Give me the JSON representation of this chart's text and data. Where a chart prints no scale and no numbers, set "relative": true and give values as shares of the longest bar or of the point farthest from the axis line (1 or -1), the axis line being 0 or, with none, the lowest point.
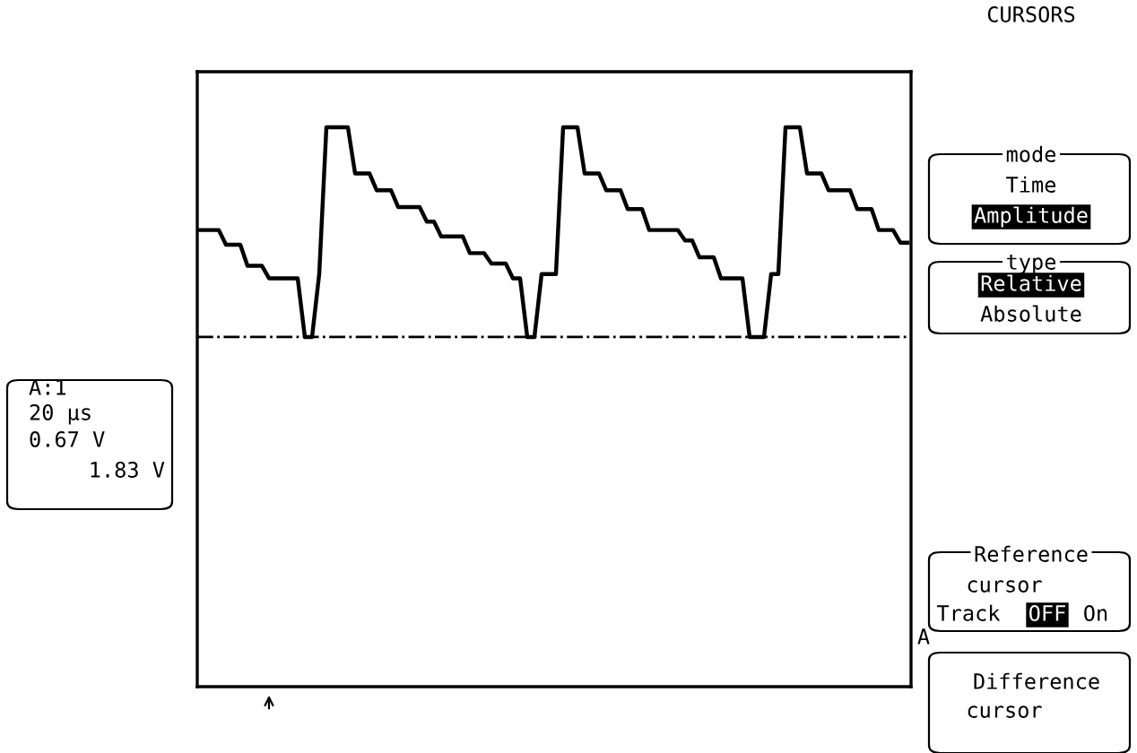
{
  "chart_data": {
    "type": "line",
    "relative": true,
    "categories": [
      null,
      null,
      null,
      null,
      null,
      null,
      null,
      null,
      null,
      null,
      null,
      null,
      null,
      null,
      null,
      null,
      null,
      null,
      null,
      null,
      null,
      null,
      null,
      null,
      null,
      null,
      null,
      null,
      null,
      null,
      null,
      null,
      null,
      null,
      null,
      null,
      null,
      null,
      null,
      null,
      null,
      null,
      null,
      null,
      null,
      null,
      null,
      null,
      null,
      null,
      null,
      null,
      null,
      null,
      null,
      null,
      null,
      null,
      null,
      null,
      null,
      null,
      null,
      null,
      null,
      null,
      null,
      null,
      null,
      null,
      null,
      null,
      null,
      null,
      null,
      null,
      null,
      null,
      null,
      null,
      null,
      null,
      null,
      null,
      null,
      null,
      null,
      null,
      null,
      null,
      null,
      null,
      null,
      null,
      null,
      null,
      null,
      null,
      null,
      null
    ],
    "series": [
      {
        "color": "#000000",
        "values": [
          0.51,
          0.51,
          0.51,
          0.51,
          0.44,
          0.44,
          0.44,
          0.34,
          0.34,
          0.34,
          0.28,
          0.28,
          0.28,
          0.28,
          0.28,
          0,
          0,
          0.3,
          1,
          1,
          1,
          1,
          0.78,
          0.78,
          0.78,
          0.7,
          0.7,
          0.7,
          0.62,
          0.62,
          0.62,
          0.62,
          0.55,
          0.55,
          0.48,
          0.48,
          0.48,
          0.48,
          0.4,
          0.4,
          0.4,
          0.35,
          0.35,
          0.35,
          0.28,
          0.28,
          0,
          0,
          0.3,
          0.3,
          0.3,
          1,
          1,
          1,
          0.78,
          0.78,
          0.78,
          0.7,
          0.7,
          0.7,
          0.61,
          0.61,
          0.61,
          0.51,
          0.51,
          0.51,
          0.51,
          0.51,
          0.46,
          0.46,
          0.38,
          0.38,
          0.38,
          0.28,
          0.28,
          0.28,
          0.28,
          0,
          0,
          0,
          0.3,
          0.3,
          1,
          1,
          1,
          0.78,
          0.78,
          0.78,
          0.7,
          0.7,
          0.7,
          0.7,
          0.61,
          0.61,
          0.61,
          0.51,
          0.51,
          0.51,
          0.45,
          0.45
        ]
      }
    ],
    "ref_lines": [
      {
        "axis": "y",
        "value": 0,
        "color": "#000000",
        "line_style": "dashdot"
      }
    ],
    "annotations": [
      "A:1",
      "20 μs",
      "0.67 V",
      "1.83 V",
      "CURSORS",
      "mode",
      "Time",
      "Amplitude",
      "type",
      "Relative",
      "Absolute",
      "Reference",
      "cursor",
      "Track",
      "OFF",
      "On",
      "Difference",
      "cursor",
      "A"
    ],
    "grid": false,
    "marker": "none",
    "line_style": "solid"
  }
}
